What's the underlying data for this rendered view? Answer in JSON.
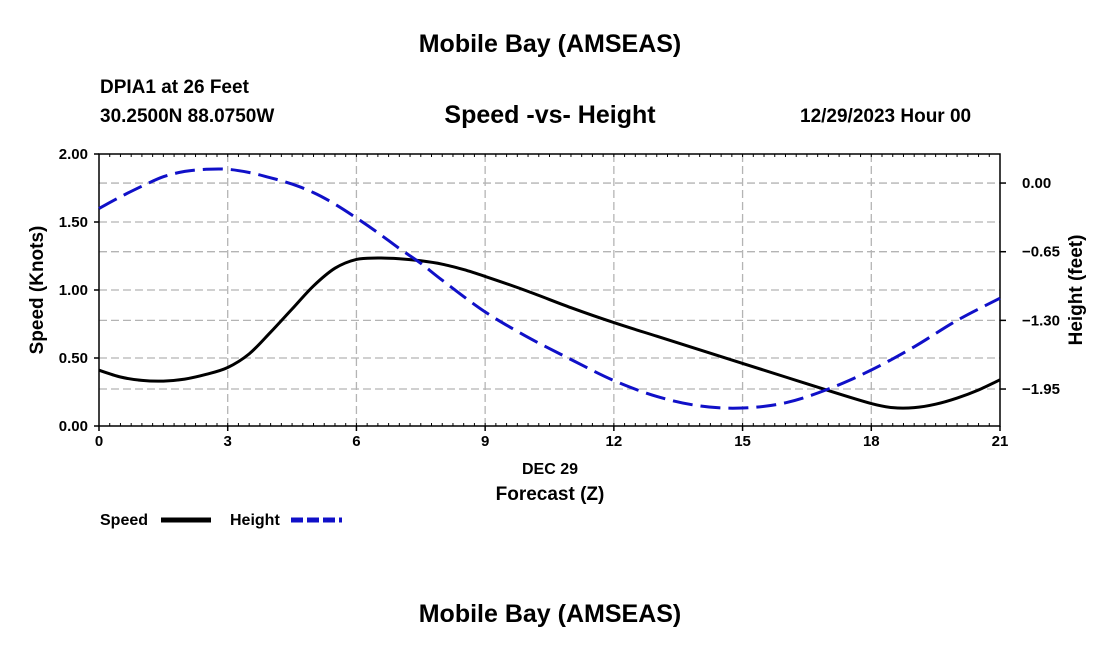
{
  "header": {
    "title": "Mobile Bay (AMSEAS)",
    "station": "DPIA1 at 26 Feet",
    "coords": "30.2500N  88.0750W",
    "subtitle": "Speed -vs- Height",
    "datetime": "12/29/2023 Hour 00"
  },
  "footer": {
    "title": "Mobile Bay (AMSEAS)"
  },
  "chart_data": {
    "type": "line",
    "title": "Speed -vs- Height",
    "xlabel": "Forecast (Z)",
    "xdate_label": "DEC 29",
    "ylabel": "Speed (Knots)",
    "y2label": "Height (feet)",
    "xlim": [
      0,
      21
    ],
    "ylim": [
      0,
      2.0
    ],
    "y2lim": [
      -2.3,
      0.275
    ],
    "xticks": [
      0,
      3,
      6,
      9,
      12,
      15,
      18,
      21
    ],
    "xtick_labels": [
      "0",
      "3",
      "6",
      "9",
      "12",
      "15",
      "18",
      "21"
    ],
    "yticks": [
      0,
      0.5,
      1.0,
      1.5,
      2.0
    ],
    "ytick_labels": [
      "0.00",
      "0.50",
      "1.00",
      "1.50",
      "2.00"
    ],
    "y2ticks": [
      0,
      -0.65,
      -1.3,
      -1.95
    ],
    "y2tick_labels": [
      "0.00",
      "−0.65",
      "−1.30",
      "−1.95"
    ],
    "grid": true,
    "series": [
      {
        "name": "Speed",
        "axis": "left",
        "color": "#000000",
        "style": "solid",
        "x": [
          0,
          0.5,
          1,
          1.5,
          2,
          2.5,
          3,
          3.5,
          4,
          4.5,
          5,
          5.5,
          6,
          6.5,
          7,
          7.5,
          8,
          8.5,
          9,
          10,
          11,
          12,
          13,
          14,
          15,
          16,
          17,
          18,
          18.5,
          19,
          19.5,
          20,
          20.5,
          21
        ],
        "values": [
          0.41,
          0.36,
          0.335,
          0.33,
          0.345,
          0.38,
          0.43,
          0.53,
          0.69,
          0.86,
          1.03,
          1.16,
          1.225,
          1.235,
          1.23,
          1.215,
          1.19,
          1.15,
          1.1,
          0.99,
          0.87,
          0.76,
          0.66,
          0.56,
          0.46,
          0.36,
          0.26,
          0.165,
          0.135,
          0.135,
          0.16,
          0.205,
          0.265,
          0.34
        ]
      },
      {
        "name": "Height",
        "axis": "right",
        "color": "#1010c8",
        "style": "dashed",
        "x": [
          0,
          0.5,
          1,
          1.5,
          2,
          2.5,
          3,
          3.5,
          4,
          4.5,
          5,
          5.5,
          6,
          6.5,
          7,
          7.5,
          8,
          9,
          10,
          11,
          12,
          13,
          14,
          15,
          16,
          17,
          18,
          19,
          20,
          21
        ],
        "values": [
          -0.24,
          -0.13,
          -0.03,
          0.06,
          0.11,
          0.13,
          0.13,
          0.1,
          0.05,
          -0.01,
          -0.09,
          -0.2,
          -0.33,
          -0.47,
          -0.62,
          -0.76,
          -0.92,
          -1.22,
          -1.46,
          -1.67,
          -1.87,
          -2.02,
          -2.11,
          -2.13,
          -2.08,
          -1.95,
          -1.77,
          -1.55,
          -1.3,
          -1.09
        ]
      }
    ],
    "legend": {
      "placement": "bottom-left",
      "items": [
        {
          "label": "Speed",
          "color": "#000000",
          "style": "solid"
        },
        {
          "label": "Height",
          "color": "#1010c8",
          "style": "dashed"
        }
      ]
    }
  }
}
